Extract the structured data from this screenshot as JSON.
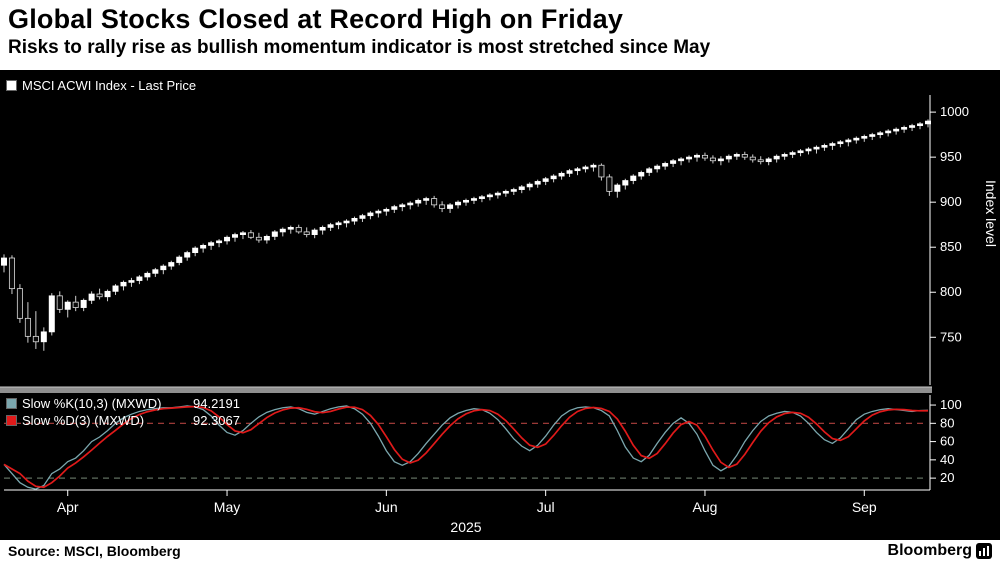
{
  "header": {
    "title": "Global Stocks Closed at Record High on Friday",
    "subtitle": "Risks to rally rise as bullish momentum indicator is most stretched since May"
  },
  "main_chart": {
    "legend_label": "MSCI ACWI Index - Last Price",
    "y_axis_title": "Index level"
  },
  "lower_chart": {
    "legend": [
      {
        "label": "Slow %K(10,3) (MXWD)",
        "value": "94.2191"
      },
      {
        "label": "Slow %D(3) (MXWD)",
        "value": "92.3067"
      }
    ]
  },
  "footer": {
    "source": "Source: MSCI, Bloomberg",
    "brand": "Bloomberg"
  },
  "colors": {
    "axis": "#ffffff",
    "up_candle": "#ffffff",
    "down_candle": "#0a0a0a",
    "wick": "#cfcfcf",
    "k_line": "#7ba7ae",
    "d_line": "#e01a1a",
    "threshold_hi": "#b0413e",
    "threshold_lo": "#5f6e5f",
    "divider": "#8f8f8f"
  },
  "chart_data": {
    "type": "candlestick",
    "title": "MSCI ACWI Index - Last Price",
    "year": "2025",
    "y_axis": {
      "label": "Index level",
      "ticks": [
        750,
        800,
        850,
        900,
        950,
        1000
      ],
      "ylim": [
        697,
        1019
      ]
    },
    "x_ticks": [
      {
        "label": "Apr",
        "i": 8
      },
      {
        "label": "May",
        "i": 28
      },
      {
        "label": "Jun",
        "i": 48
      },
      {
        "label": "Jul",
        "i": 68
      },
      {
        "label": "Aug",
        "i": 88
      },
      {
        "label": "Sep",
        "i": 108
      }
    ],
    "candles": [
      [
        830,
        842,
        822,
        838
      ],
      [
        838,
        841,
        798,
        804
      ],
      [
        804,
        809,
        766,
        771
      ],
      [
        771,
        789,
        744,
        751
      ],
      [
        751,
        779,
        737,
        745
      ],
      [
        745,
        761,
        735,
        756
      ],
      [
        756,
        799,
        752,
        796
      ],
      [
        796,
        801,
        777,
        781
      ],
      [
        781,
        791,
        772,
        789
      ],
      [
        789,
        796,
        779,
        783
      ],
      [
        783,
        793,
        779,
        791
      ],
      [
        791,
        801,
        787,
        798
      ],
      [
        798,
        804,
        792,
        795
      ],
      [
        795,
        803,
        790,
        801
      ],
      [
        801,
        809,
        797,
        807
      ],
      [
        807,
        813,
        802,
        811
      ],
      [
        811,
        816,
        806,
        813
      ],
      [
        813,
        819,
        809,
        817
      ],
      [
        817,
        823,
        813,
        821
      ],
      [
        821,
        827,
        817,
        825
      ],
      [
        825,
        831,
        820,
        829
      ],
      [
        829,
        835,
        825,
        833
      ],
      [
        833,
        841,
        830,
        839
      ],
      [
        839,
        846,
        835,
        844
      ],
      [
        844,
        851,
        840,
        849
      ],
      [
        849,
        854,
        844,
        852
      ],
      [
        852,
        857,
        847,
        855
      ],
      [
        855,
        859,
        850,
        857
      ],
      [
        857,
        863,
        853,
        861
      ],
      [
        861,
        866,
        856,
        864
      ],
      [
        864,
        868,
        859,
        866
      ],
      [
        866,
        869,
        859,
        861
      ],
      [
        861,
        866,
        855,
        858
      ],
      [
        858,
        864,
        854,
        862
      ],
      [
        862,
        869,
        858,
        867
      ],
      [
        867,
        872,
        862,
        870
      ],
      [
        870,
        874,
        865,
        872
      ],
      [
        872,
        875,
        865,
        867
      ],
      [
        867,
        872,
        861,
        864
      ],
      [
        864,
        871,
        860,
        869
      ],
      [
        869,
        874,
        864,
        872
      ],
      [
        872,
        877,
        868,
        875
      ],
      [
        875,
        879,
        870,
        877
      ],
      [
        877,
        881,
        872,
        879
      ],
      [
        879,
        884,
        875,
        882
      ],
      [
        882,
        887,
        878,
        885
      ],
      [
        885,
        890,
        881,
        888
      ],
      [
        888,
        892,
        883,
        890
      ],
      [
        890,
        894,
        885,
        892
      ],
      [
        892,
        897,
        888,
        895
      ],
      [
        895,
        899,
        890,
        897
      ],
      [
        897,
        901,
        892,
        899
      ],
      [
        899,
        904,
        895,
        902
      ],
      [
        902,
        906,
        897,
        904
      ],
      [
        904,
        907,
        894,
        897
      ],
      [
        897,
        901,
        889,
        893
      ],
      [
        893,
        899,
        888,
        897
      ],
      [
        897,
        902,
        893,
        900
      ],
      [
        900,
        904,
        896,
        902
      ],
      [
        902,
        906,
        898,
        904
      ],
      [
        904,
        908,
        900,
        906
      ],
      [
        906,
        910,
        902,
        908
      ],
      [
        908,
        912,
        904,
        910
      ],
      [
        910,
        914,
        906,
        912
      ],
      [
        912,
        916,
        908,
        914
      ],
      [
        914,
        919,
        910,
        917
      ],
      [
        917,
        922,
        913,
        920
      ],
      [
        920,
        925,
        916,
        923
      ],
      [
        923,
        928,
        919,
        926
      ],
      [
        926,
        931,
        922,
        929
      ],
      [
        929,
        934,
        925,
        932
      ],
      [
        932,
        937,
        928,
        935
      ],
      [
        935,
        939,
        930,
        937
      ],
      [
        937,
        941,
        933,
        939
      ],
      [
        939,
        943,
        934,
        941
      ],
      [
        941,
        943,
        924,
        928
      ],
      [
        928,
        931,
        907,
        912
      ],
      [
        912,
        921,
        905,
        919
      ],
      [
        919,
        926,
        914,
        924
      ],
      [
        924,
        931,
        920,
        929
      ],
      [
        929,
        935,
        925,
        933
      ],
      [
        933,
        939,
        929,
        937
      ],
      [
        937,
        942,
        933,
        940
      ],
      [
        940,
        945,
        936,
        943
      ],
      [
        943,
        948,
        939,
        946
      ],
      [
        946,
        950,
        941,
        948
      ],
      [
        948,
        952,
        944,
        950
      ],
      [
        950,
        954,
        945,
        952
      ],
      [
        952,
        955,
        946,
        949
      ],
      [
        949,
        952,
        943,
        946
      ],
      [
        946,
        951,
        941,
        948
      ],
      [
        948,
        953,
        944,
        951
      ],
      [
        951,
        955,
        947,
        953
      ],
      [
        953,
        956,
        947,
        950
      ],
      [
        950,
        953,
        944,
        947
      ],
      [
        947,
        951,
        942,
        945
      ],
      [
        945,
        950,
        941,
        948
      ],
      [
        948,
        953,
        944,
        951
      ],
      [
        951,
        955,
        947,
        953
      ],
      [
        953,
        957,
        949,
        955
      ],
      [
        955,
        959,
        951,
        957
      ],
      [
        957,
        961,
        953,
        959
      ],
      [
        959,
        963,
        954,
        961
      ],
      [
        961,
        965,
        957,
        963
      ],
      [
        963,
        967,
        958,
        965
      ],
      [
        965,
        969,
        961,
        967
      ],
      [
        967,
        971,
        962,
        969
      ],
      [
        969,
        973,
        965,
        971
      ],
      [
        971,
        975,
        967,
        973
      ],
      [
        973,
        977,
        969,
        975
      ],
      [
        975,
        979,
        971,
        977
      ],
      [
        977,
        981,
        973,
        979
      ],
      [
        979,
        983,
        975,
        981
      ],
      [
        981,
        985,
        977,
        983
      ],
      [
        983,
        987,
        979,
        985
      ],
      [
        985,
        989,
        981,
        987
      ],
      [
        987,
        992,
        983,
        990
      ]
    ],
    "stochastic": {
      "k_label": "Slow %K(10,3) (MXWD)",
      "k_last": 94.2191,
      "d_label": "Slow %D(3) (MXWD)",
      "d_last": 92.3067,
      "d_smoothing": 3,
      "y_ticks": [
        20,
        40,
        60,
        80,
        100
      ],
      "thresholds": [
        80,
        20
      ],
      "ylim": [
        0,
        100
      ],
      "k_values": [
        35,
        25,
        15,
        10,
        8,
        12,
        25,
        30,
        38,
        42,
        50,
        60,
        65,
        72,
        80,
        86,
        90,
        93,
        95,
        96,
        97,
        97,
        98,
        99,
        98,
        95,
        88,
        78,
        70,
        67,
        72,
        80,
        87,
        92,
        95,
        97,
        98,
        96,
        92,
        90,
        93,
        96,
        98,
        99,
        96,
        90,
        80,
        66,
        50,
        38,
        34,
        38,
        47,
        58,
        68,
        78,
        86,
        91,
        94,
        96,
        95,
        91,
        84,
        74,
        63,
        55,
        50,
        56,
        66,
        78,
        88,
        94,
        97,
        98,
        97,
        94,
        88,
        72,
        54,
        42,
        38,
        45,
        58,
        70,
        80,
        86,
        80,
        68,
        50,
        34,
        28,
        33,
        45,
        60,
        72,
        82,
        88,
        91,
        93,
        92,
        88,
        80,
        70,
        62,
        58,
        64,
        74,
        84,
        90,
        93,
        95,
        96,
        95,
        94,
        93,
        94,
        94.2191
      ]
    }
  }
}
